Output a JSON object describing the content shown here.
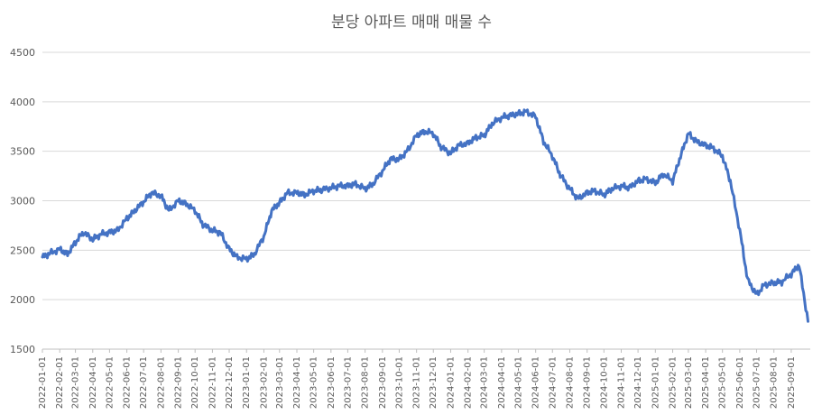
{
  "chart_data": {
    "type": "line",
    "title": "분당 아파트 매매 매물 수",
    "xlabel": "",
    "ylabel": "",
    "ylim": [
      1500,
      4500
    ],
    "yticks": [
      1500,
      2000,
      2500,
      3000,
      3500,
      4000,
      4500
    ],
    "grid": true,
    "legend": "none",
    "line_color": "#4472c4",
    "xticks": [
      "2022-01-01",
      "2022-02-01",
      "2022-03-01",
      "2022-04-01",
      "2022-05-01",
      "2022-06-01",
      "2022-07-01",
      "2022-08-01",
      "2022-09-01",
      "2022-10-01",
      "2022-11-01",
      "2022-12-01",
      "2023-01-01",
      "2023-02-01",
      "2023-03-01",
      "2023-04-01",
      "2023-05-01",
      "2023-06-01",
      "2023-07-01",
      "2023-08-01",
      "2023-09-01",
      "2023-10-01",
      "2023-11-01",
      "2023-12-01",
      "2024-01-01",
      "2024-02-01",
      "2024-03-01",
      "2024-04-01",
      "2024-05-01",
      "2024-06-01",
      "2024-07-01",
      "2024-08-01",
      "2024-09-01",
      "2024-10-01",
      "2024-11-01",
      "2024-12-01",
      "2025-01-01",
      "2025-02-01",
      "2025-03-01",
      "2025-04-01",
      "2025-05-01",
      "2025-06-01",
      "2025-07-01",
      "2025-08-01",
      "2025-09-01"
    ],
    "series": [
      {
        "x": [
          "2022-01-01",
          "2022-01-15",
          "2022-02-01",
          "2022-02-15",
          "2022-03-01",
          "2022-03-15",
          "2022-04-01",
          "2022-04-15",
          "2022-05-01",
          "2022-05-15",
          "2022-06-01",
          "2022-06-15",
          "2022-07-01",
          "2022-07-15",
          "2022-08-01",
          "2022-08-15",
          "2022-09-01",
          "2022-09-15",
          "2022-10-01",
          "2022-10-15",
          "2022-11-01",
          "2022-11-15",
          "2022-12-01",
          "2022-12-15",
          "2023-01-01",
          "2023-01-15",
          "2023-02-01",
          "2023-02-15",
          "2023-03-01",
          "2023-03-15",
          "2023-04-01",
          "2023-04-15",
          "2023-05-01",
          "2023-05-15",
          "2023-06-01",
          "2023-06-15",
          "2023-07-01",
          "2023-07-15",
          "2023-08-01",
          "2023-08-15",
          "2023-09-01",
          "2023-09-15",
          "2023-10-01",
          "2023-10-15",
          "2023-11-01",
          "2023-11-15",
          "2023-12-01",
          "2023-12-15",
          "2024-01-01",
          "2024-01-15",
          "2024-02-01",
          "2024-02-15",
          "2024-03-01",
          "2024-03-15",
          "2024-04-01",
          "2024-04-15",
          "2024-05-01",
          "2024-05-15",
          "2024-06-01",
          "2024-06-15",
          "2024-07-01",
          "2024-07-15",
          "2024-08-01",
          "2024-08-15",
          "2024-09-01",
          "2024-09-15",
          "2024-10-01",
          "2024-10-15",
          "2024-11-01",
          "2024-11-15",
          "2024-12-01",
          "2024-12-15",
          "2025-01-01",
          "2025-01-15",
          "2025-02-01",
          "2025-02-15",
          "2025-03-01",
          "2025-03-15",
          "2025-04-01",
          "2025-04-15",
          "2025-05-01",
          "2025-05-15",
          "2025-06-01",
          "2025-06-15",
          "2025-07-01",
          "2025-07-15",
          "2025-08-01",
          "2025-08-15",
          "2025-09-01",
          "2025-09-15",
          "2025-10-01"
        ],
        "values": [
          2430,
          2470,
          2510,
          2460,
          2580,
          2680,
          2610,
          2660,
          2680,
          2700,
          2820,
          2900,
          2990,
          3080,
          3050,
          2900,
          3000,
          2970,
          2900,
          2760,
          2700,
          2680,
          2510,
          2430,
          2410,
          2460,
          2640,
          2900,
          2980,
          3080,
          3080,
          3060,
          3100,
          3110,
          3130,
          3150,
          3150,
          3170,
          3120,
          3170,
          3300,
          3420,
          3420,
          3500,
          3660,
          3700,
          3680,
          3540,
          3480,
          3560,
          3580,
          3640,
          3660,
          3780,
          3840,
          3860,
          3880,
          3900,
          3850,
          3600,
          3450,
          3260,
          3120,
          3020,
          3080,
          3100,
          3060,
          3120,
          3150,
          3130,
          3200,
          3220,
          3180,
          3270,
          3200,
          3450,
          3680,
          3600,
          3560,
          3530,
          3450,
          3200,
          2700,
          2200,
          2050,
          2150,
          2170,
          2180,
          2260,
          2350,
          1780
        ]
      }
    ]
  }
}
